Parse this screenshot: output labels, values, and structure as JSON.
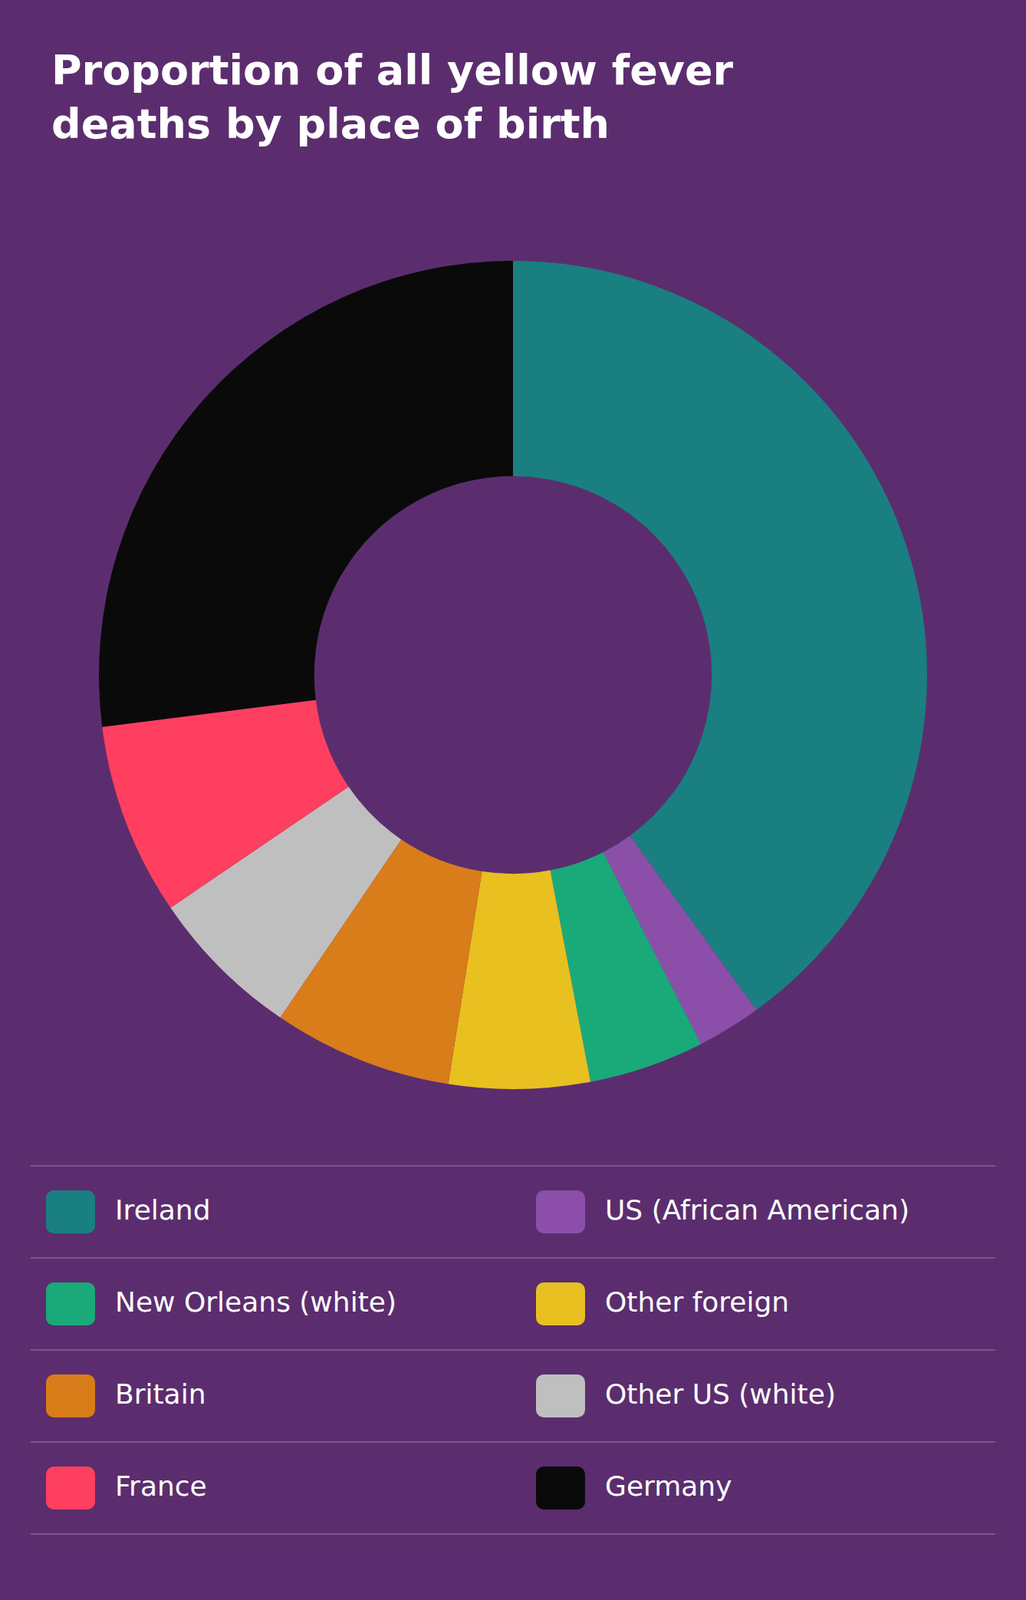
{
  "chart_data": {
    "type": "pie",
    "title": "Proportion of all yellow fever\ndeaths by place of birth",
    "categories": [
      "Ireland",
      "US (African American)",
      "New Orleans (white)",
      "Other foreign",
      "Britain",
      "Other US (white)",
      "France",
      "Germany"
    ],
    "values": [
      40.0,
      2.5,
      4.5,
      5.5,
      7.0,
      6.0,
      7.5,
      27.0
    ],
    "colors": [
      "#1a7f80",
      "#8b4faa",
      "#1aaa7a",
      "#e8c020",
      "#d97c1a",
      "#c0bfc0",
      "#ff3f5f",
      "#0a0a0a"
    ],
    "legend": "bottom"
  }
}
